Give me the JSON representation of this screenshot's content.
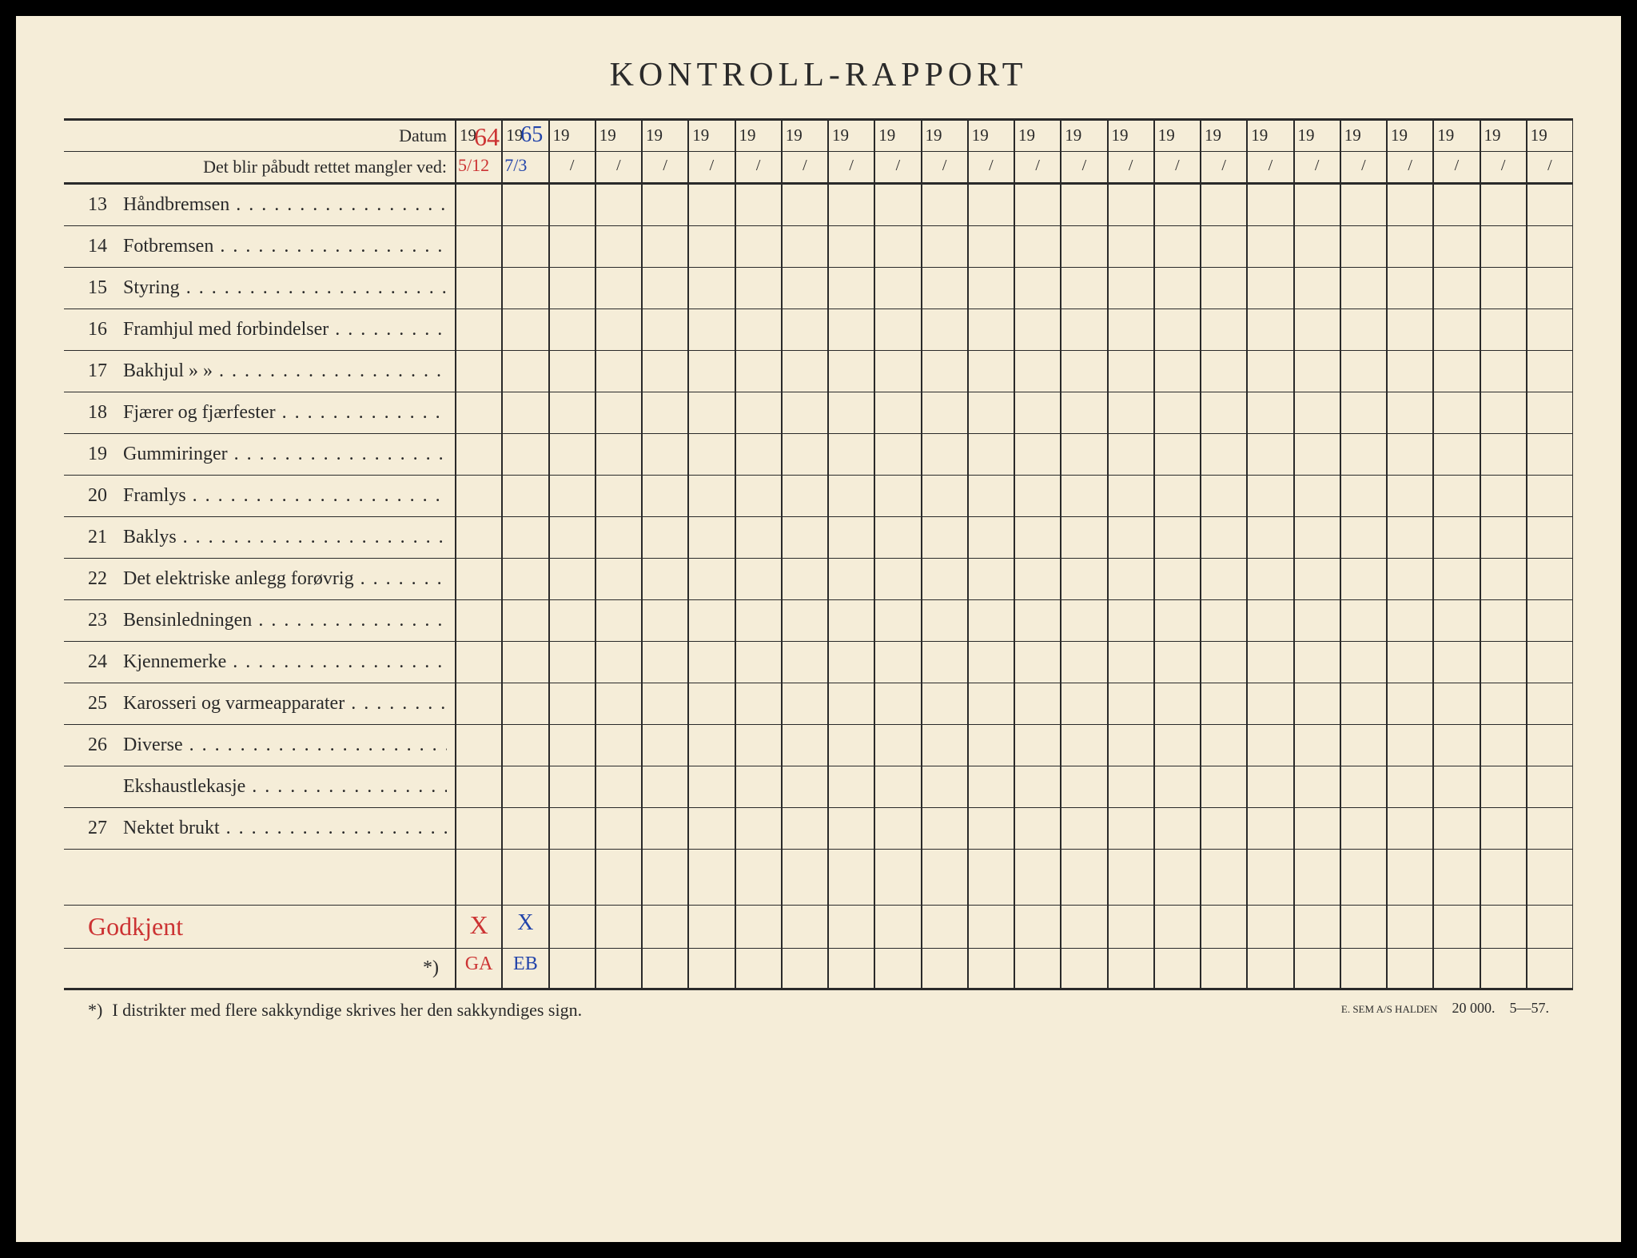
{
  "title": "KONTROLL-RAPPORT",
  "header": {
    "datum_label": "Datum",
    "subheader_label": "Det blir påbudt rettet mangler ved:",
    "year_prefix": "19",
    "slash": "/"
  },
  "handwritten": {
    "year1_suffix": "64",
    "year2_suffix": "65",
    "date1": "5/12",
    "date2": "7/3",
    "godkjent": "Godkjent",
    "x_red": "X",
    "x_blue": "X",
    "sign1": "GA",
    "sign2": "EB"
  },
  "rows": [
    {
      "num": "13",
      "label": "Håndbremsen"
    },
    {
      "num": "14",
      "label": "Fotbremsen"
    },
    {
      "num": "15",
      "label": "Styring"
    },
    {
      "num": "16",
      "label": "Framhjul med forbindelser"
    },
    {
      "num": "17",
      "label": "Bakhjul        »              »"
    },
    {
      "num": "18",
      "label": "Fjærer og fjærfester"
    },
    {
      "num": "19",
      "label": "Gummiringer"
    },
    {
      "num": "20",
      "label": "Framlys"
    },
    {
      "num": "21",
      "label": "Baklys"
    },
    {
      "num": "22",
      "label": "Det elektriske anlegg forøvrig"
    },
    {
      "num": "23",
      "label": "Bensinledningen"
    },
    {
      "num": "24",
      "label": "Kjennemerke"
    },
    {
      "num": "25",
      "label": "Karosseri og varmeapparater"
    },
    {
      "num": "26",
      "label": "Diverse"
    },
    {
      "num": "",
      "label": "Ekshaustlekasje"
    },
    {
      "num": "27",
      "label": "Nektet brukt"
    }
  ],
  "asterisk": "*)",
  "footnote": {
    "marker": "*)",
    "text": "I distrikter med flere sakkyndige skrives her den sakkyndiges sign.",
    "printer": "E. SEM A/S HALDEN",
    "print_run": "20 000.",
    "print_code": "5—57."
  },
  "num_columns": 24,
  "colors": {
    "page_bg": "#f5edd8",
    "text": "#2a2a2a",
    "border": "#2a2a2a",
    "handwritten_red": "#cc3333",
    "handwritten_blue": "#2244aa"
  }
}
